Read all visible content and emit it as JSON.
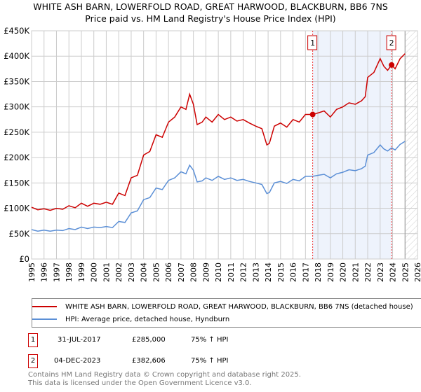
{
  "chart_data": {
    "type": "line",
    "title": "WHITE ASH BARN, LOWERFOLD ROAD, GREAT HARWOOD, BLACKBURN, BB6 7NS",
    "subtitle": "Price paid vs. HM Land Registry's House Price Index (HPI)",
    "xlim": [
      1995,
      2026
    ],
    "ylim": [
      0,
      450000
    ],
    "x_ticks": [
      "1995",
      "1996",
      "1997",
      "1998",
      "1999",
      "2000",
      "2001",
      "2002",
      "2003",
      "2004",
      "2005",
      "2006",
      "2007",
      "2008",
      "2009",
      "2010",
      "2011",
      "2012",
      "2013",
      "2014",
      "2015",
      "2016",
      "2017",
      "2018",
      "2019",
      "2020",
      "2021",
      "2022",
      "2023",
      "2024",
      "2025",
      "2026"
    ],
    "y_ticks": [
      {
        "v": 0,
        "label": "£0"
      },
      {
        "v": 50000,
        "label": "£50K"
      },
      {
        "v": 100000,
        "label": "£100K"
      },
      {
        "v": 150000,
        "label": "£150K"
      },
      {
        "v": 200000,
        "label": "£200K"
      },
      {
        "v": 250000,
        "label": "£250K"
      },
      {
        "v": 300000,
        "label": "£300K"
      },
      {
        "v": 350000,
        "label": "£350K"
      },
      {
        "v": 400000,
        "label": "£400K"
      },
      {
        "v": 450000,
        "label": "£450K"
      }
    ],
    "grid": true,
    "series": [
      {
        "name": "WHITE ASH BARN, LOWERFOLD ROAD, GREAT HARWOOD, BLACKBURN, BB6 7NS (detached house)",
        "color": "#cc0000",
        "x": [
          1995,
          1995.5,
          1996,
          1996.5,
          1997,
          1997.5,
          1998,
          1998.5,
          1999,
          1999.5,
          2000,
          2000.5,
          2001,
          2001.5,
          2002,
          2002.5,
          2003,
          2003.5,
          2004,
          2004.5,
          2005,
          2005.5,
          2006,
          2006.5,
          2007,
          2007.4,
          2007.7,
          2008,
          2008.3,
          2008.7,
          2009,
          2009.5,
          2010,
          2010.5,
          2011,
          2011.5,
          2012,
          2012.5,
          2013,
          2013.5,
          2013.9,
          2014.1,
          2014.5,
          2015,
          2015.5,
          2016,
          2016.5,
          2017,
          2017.58,
          2018,
          2018.5,
          2019,
          2019.5,
          2020,
          2020.5,
          2021,
          2021.5,
          2021.8,
          2022,
          2022.5,
          2023,
          2023.3,
          2023.6,
          2023.92,
          2024.2,
          2024.6,
          2025
        ],
        "y": [
          102000,
          97000,
          99000,
          96000,
          100000,
          98000,
          105000,
          101000,
          110000,
          104000,
          110000,
          108000,
          112000,
          108000,
          130000,
          125000,
          160000,
          165000,
          205000,
          212000,
          245000,
          240000,
          270000,
          280000,
          300000,
          295000,
          325000,
          305000,
          265000,
          270000,
          280000,
          270000,
          285000,
          275000,
          280000,
          272000,
          275000,
          268000,
          262000,
          257000,
          225000,
          228000,
          262000,
          268000,
          260000,
          275000,
          270000,
          285000,
          285000,
          288000,
          292000,
          280000,
          295000,
          300000,
          308000,
          305000,
          312000,
          320000,
          358000,
          368000,
          395000,
          380000,
          372000,
          382606,
          375000,
          395000,
          405000
        ]
      },
      {
        "name": "HPI: Average price, detached house, Hyndburn",
        "color": "#5b8fd6",
        "x": [
          1995,
          1995.5,
          1996,
          1996.5,
          1997,
          1997.5,
          1998,
          1998.5,
          1999,
          1999.5,
          2000,
          2000.5,
          2001,
          2001.5,
          2002,
          2002.5,
          2003,
          2003.5,
          2004,
          2004.5,
          2005,
          2005.5,
          2006,
          2006.5,
          2007,
          2007.4,
          2007.7,
          2008,
          2008.3,
          2008.7,
          2009,
          2009.5,
          2010,
          2010.5,
          2011,
          2011.5,
          2012,
          2012.5,
          2013,
          2013.5,
          2013.9,
          2014.1,
          2014.5,
          2015,
          2015.5,
          2016,
          2016.5,
          2017,
          2017.58,
          2018,
          2018.5,
          2019,
          2019.5,
          2020,
          2020.5,
          2021,
          2021.5,
          2021.8,
          2022,
          2022.5,
          2023,
          2023.3,
          2023.6,
          2023.92,
          2024.2,
          2024.6,
          2025
        ],
        "y": [
          58000,
          55000,
          57000,
          55000,
          57000,
          56000,
          60000,
          58000,
          63000,
          60000,
          63000,
          62000,
          64000,
          62000,
          74000,
          72000,
          91000,
          95000,
          117000,
          121000,
          140000,
          137000,
          155000,
          160000,
          172000,
          168000,
          185000,
          175000,
          152000,
          154000,
          160000,
          155000,
          163000,
          157000,
          160000,
          155000,
          157000,
          153000,
          150000,
          147000,
          129000,
          131000,
          150000,
          153000,
          149000,
          157000,
          154000,
          163000,
          163000,
          165000,
          167000,
          160000,
          168000,
          171000,
          176000,
          174000,
          178000,
          183000,
          205000,
          210000,
          225000,
          217000,
          213000,
          219000,
          215000,
          226000,
          232000
        ]
      }
    ],
    "annotations": [
      {
        "label": "1",
        "x": 2017.58,
        "y": 285000
      },
      {
        "label": "2",
        "x": 2023.92,
        "y": 382606
      }
    ],
    "shaded_range": [
      2017.58,
      2023.92
    ],
    "hatched_from": 2025.0,
    "legend_placement": "below"
  },
  "legend": {
    "items": [
      "WHITE ASH BARN, LOWERFOLD ROAD, GREAT HARWOOD, BLACKBURN, BB6 7NS (detached house)",
      "HPI: Average price, detached house, Hyndburn"
    ]
  },
  "table": [
    {
      "num": "1",
      "date": "31-JUL-2017",
      "price": "£285,000",
      "hpi": "75% ↑ HPI"
    },
    {
      "num": "2",
      "date": "04-DEC-2023",
      "price": "£382,606",
      "hpi": "75% ↑ HPI"
    }
  ],
  "footer": {
    "line1": "Contains HM Land Registry data © Crown copyright and database right 2025.",
    "line2": "This data is licensed under the Open Government Licence v3.0."
  }
}
